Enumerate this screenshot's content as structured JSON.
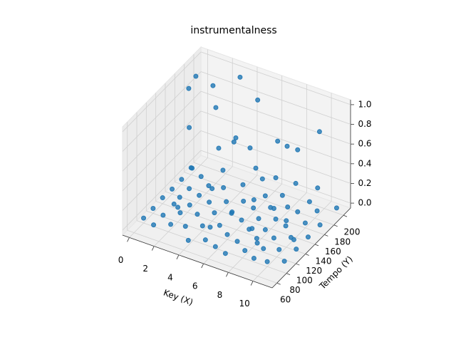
{
  "chart_data": {
    "type": "scatter3d",
    "title": "instrumentalness",
    "xlabel": "Key (X)",
    "ylabel": "Tempo (Y)",
    "xlim": [
      -0.55,
      11.55
    ],
    "ylim": [
      50,
      215
    ],
    "zlim": [
      -0.05,
      1.05
    ],
    "xticks": [
      0,
      2,
      4,
      6,
      8,
      10
    ],
    "yticks": [
      60,
      80,
      100,
      120,
      140,
      160,
      180,
      200
    ],
    "zticks": [
      {
        "value": 0,
        "label": "0.0"
      },
      0.2,
      0.4,
      0.6,
      0.8,
      {
        "value": 1,
        "label": "1.0"
      }
    ],
    "grid": true,
    "series": [
      {
        "color": "#1f77b4",
        "x": [
          0,
          0,
          0,
          0,
          0,
          0,
          1,
          1,
          1,
          1,
          1,
          1,
          2,
          2,
          2,
          2,
          2,
          2,
          3,
          3,
          3,
          3,
          4,
          4,
          4,
          4,
          4,
          5,
          5,
          5,
          5,
          5,
          6,
          6,
          6,
          6,
          6,
          7,
          7,
          7,
          7,
          7,
          7,
          8,
          8,
          8,
          8,
          8,
          9,
          9,
          9,
          9,
          9,
          9,
          10,
          10,
          10,
          10,
          10,
          11,
          11,
          11,
          11,
          11,
          0,
          0,
          1,
          1,
          2,
          2,
          3,
          3,
          4,
          4,
          5,
          5,
          6,
          6,
          7,
          7,
          8,
          8,
          9,
          9,
          10,
          10,
          11,
          11,
          2,
          5,
          9,
          4,
          7,
          10
        ],
        "y": [
          80,
          100,
          120,
          140,
          160,
          180,
          75,
          95,
          118,
          130,
          150,
          175,
          85,
          105,
          125,
          145,
          165,
          195,
          90,
          115,
          140,
          170,
          70,
          100,
          125,
          150,
          185,
          80,
          110,
          135,
          160,
          200,
          75,
          100,
          130,
          155,
          180,
          70,
          95,
          120,
          140,
          165,
          190,
          85,
          110,
          128,
          150,
          175,
          78,
          98,
          120,
          145,
          170,
          195,
          80,
          105,
          130,
          160,
          185,
          90,
          115,
          140,
          165,
          200,
          175,
          190,
          150,
          200,
          130,
          180,
          160,
          205,
          120,
          170,
          140,
          190,
          110,
          160,
          130,
          180,
          100,
          150,
          120,
          170,
          140,
          190,
          110,
          160,
          100,
          90,
          85,
          200,
          200,
          120
        ],
        "z": [
          0,
          0,
          0.01,
          0,
          0,
          0.02,
          0,
          0,
          0,
          0.01,
          0,
          0,
          0,
          0.02,
          0,
          0,
          0,
          0.01,
          0,
          0,
          0,
          0,
          0,
          0,
          0.01,
          0,
          0,
          0,
          0,
          0,
          0,
          0.03,
          0,
          0,
          0,
          0,
          0,
          0,
          0,
          0,
          0.01,
          0,
          0,
          0,
          0,
          0,
          0,
          0,
          0,
          0,
          0,
          0,
          0.02,
          0,
          0,
          0,
          0,
          0,
          0,
          0,
          0,
          0,
          0,
          0,
          0.85,
          0.9,
          0.62,
          0.8,
          0.35,
          0.72,
          0.45,
          0.95,
          0.28,
          0.55,
          0.7,
          0.88,
          0.18,
          0.38,
          0.25,
          0.6,
          0.15,
          0.42,
          0.3,
          0.65,
          0.5,
          0.78,
          0.12,
          0.4,
          0.1,
          0.08,
          0.12,
          0.3,
          0.45,
          0.22
        ]
      }
    ]
  }
}
